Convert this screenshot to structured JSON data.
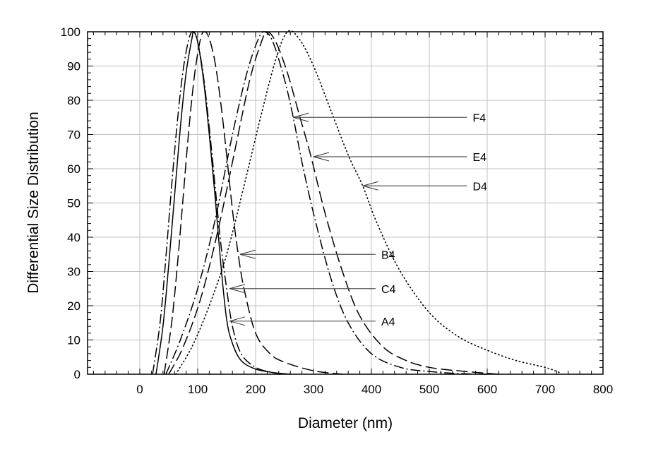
{
  "chart_data": {
    "type": "line",
    "title": "",
    "xlabel": "Diameter (nm)",
    "ylabel": "Differential Size Distribution",
    "xlim": [
      -90,
      800
    ],
    "ylim": [
      0,
      100
    ],
    "x_ticks": [
      "0",
      "100",
      "200",
      "300",
      "400",
      "500",
      "600",
      "700",
      "800"
    ],
    "y_ticks": [
      "0",
      "10",
      "20",
      "30",
      "40",
      "50",
      "60",
      "70",
      "80",
      "90",
      "100"
    ],
    "grid": true,
    "legend": "arrow annotations",
    "series": [
      {
        "name": "A4",
        "style": "solid",
        "x": [
          28,
          40,
          50,
          60,
          70,
          80,
          90,
          93,
          100,
          110,
          120,
          130,
          140,
          150,
          160,
          175,
          200,
          230,
          260
        ],
        "y": [
          0,
          14,
          32,
          52,
          72,
          88,
          98,
          100,
          97,
          86,
          70,
          52,
          32,
          16,
          9,
          4,
          1.5,
          0.5,
          0
        ]
      },
      {
        "name": "C4",
        "style": "dashdot",
        "x": [
          22,
          35,
          45,
          55,
          65,
          75,
          85,
          92,
          100,
          110,
          120,
          130,
          140,
          150,
          160,
          175,
          200,
          230,
          260
        ],
        "y": [
          0,
          15,
          34,
          55,
          74,
          89,
          98,
          100,
          97,
          87,
          72,
          55,
          38,
          25,
          14,
          6,
          2,
          0.5,
          0
        ]
      },
      {
        "name": "B4",
        "style": "longdash",
        "x": [
          42,
          55,
          65,
          75,
          85,
          95,
          105,
          112,
          120,
          130,
          140,
          150,
          160,
          170,
          180,
          200,
          225,
          250,
          300,
          350
        ],
        "y": [
          0,
          15,
          32,
          52,
          72,
          88,
          98,
          100,
          98,
          91,
          79,
          64,
          48,
          35,
          25,
          12,
          6,
          3.5,
          1,
          0
        ]
      },
      {
        "name": "F4",
        "style": "dashdot",
        "x": [
          45,
          70,
          100,
          130,
          160,
          185,
          205,
          216,
          230,
          250,
          265,
          280,
          300,
          330,
          360,
          400,
          450,
          500,
          550,
          600
        ],
        "y": [
          0,
          10,
          25,
          45,
          70,
          88,
          98,
          100,
          97,
          86,
          75,
          62,
          47,
          28,
          15,
          6,
          2,
          0.8,
          0.2,
          0
        ]
      },
      {
        "name": "E4",
        "style": "longdash",
        "x": [
          50,
          75,
          105,
          135,
          165,
          190,
          210,
          220,
          235,
          255,
          275,
          295,
          320,
          350,
          380,
          420,
          460,
          500,
          550,
          620
        ],
        "y": [
          0,
          8,
          22,
          42,
          66,
          86,
          97,
          100,
          97,
          88,
          76,
          64,
          47,
          30,
          17,
          8,
          4,
          2,
          1,
          0
        ]
      },
      {
        "name": "D4",
        "style": "dotted",
        "x": [
          62,
          90,
          120,
          150,
          180,
          210,
          235,
          255,
          275,
          300,
          330,
          360,
          385,
          410,
          450,
          500,
          550,
          600,
          650,
          700,
          725
        ],
        "y": [
          0,
          8,
          20,
          35,
          55,
          76,
          92,
          100,
          98,
          90,
          77,
          64,
          55,
          44,
          30,
          18,
          11,
          7,
          4,
          2,
          0.5
        ]
      }
    ],
    "annotations": [
      {
        "label": "F4",
        "arrow_tip": [
          265,
          75
        ],
        "text_pos": [
          575,
          75
        ]
      },
      {
        "label": "E4",
        "arrow_tip": [
          300,
          63.5
        ],
        "text_pos": [
          575,
          63.5
        ]
      },
      {
        "label": "D4",
        "arrow_tip": [
          385,
          55
        ],
        "text_pos": [
          575,
          55
        ]
      },
      {
        "label": "B4",
        "arrow_tip": [
          173,
          35
        ],
        "text_pos": [
          417,
          35
        ]
      },
      {
        "label": "C4",
        "arrow_tip": [
          155,
          25
        ],
        "text_pos": [
          417,
          25
        ]
      },
      {
        "label": "A4",
        "arrow_tip": [
          155,
          15.5
        ],
        "text_pos": [
          417,
          15.5
        ]
      }
    ]
  }
}
